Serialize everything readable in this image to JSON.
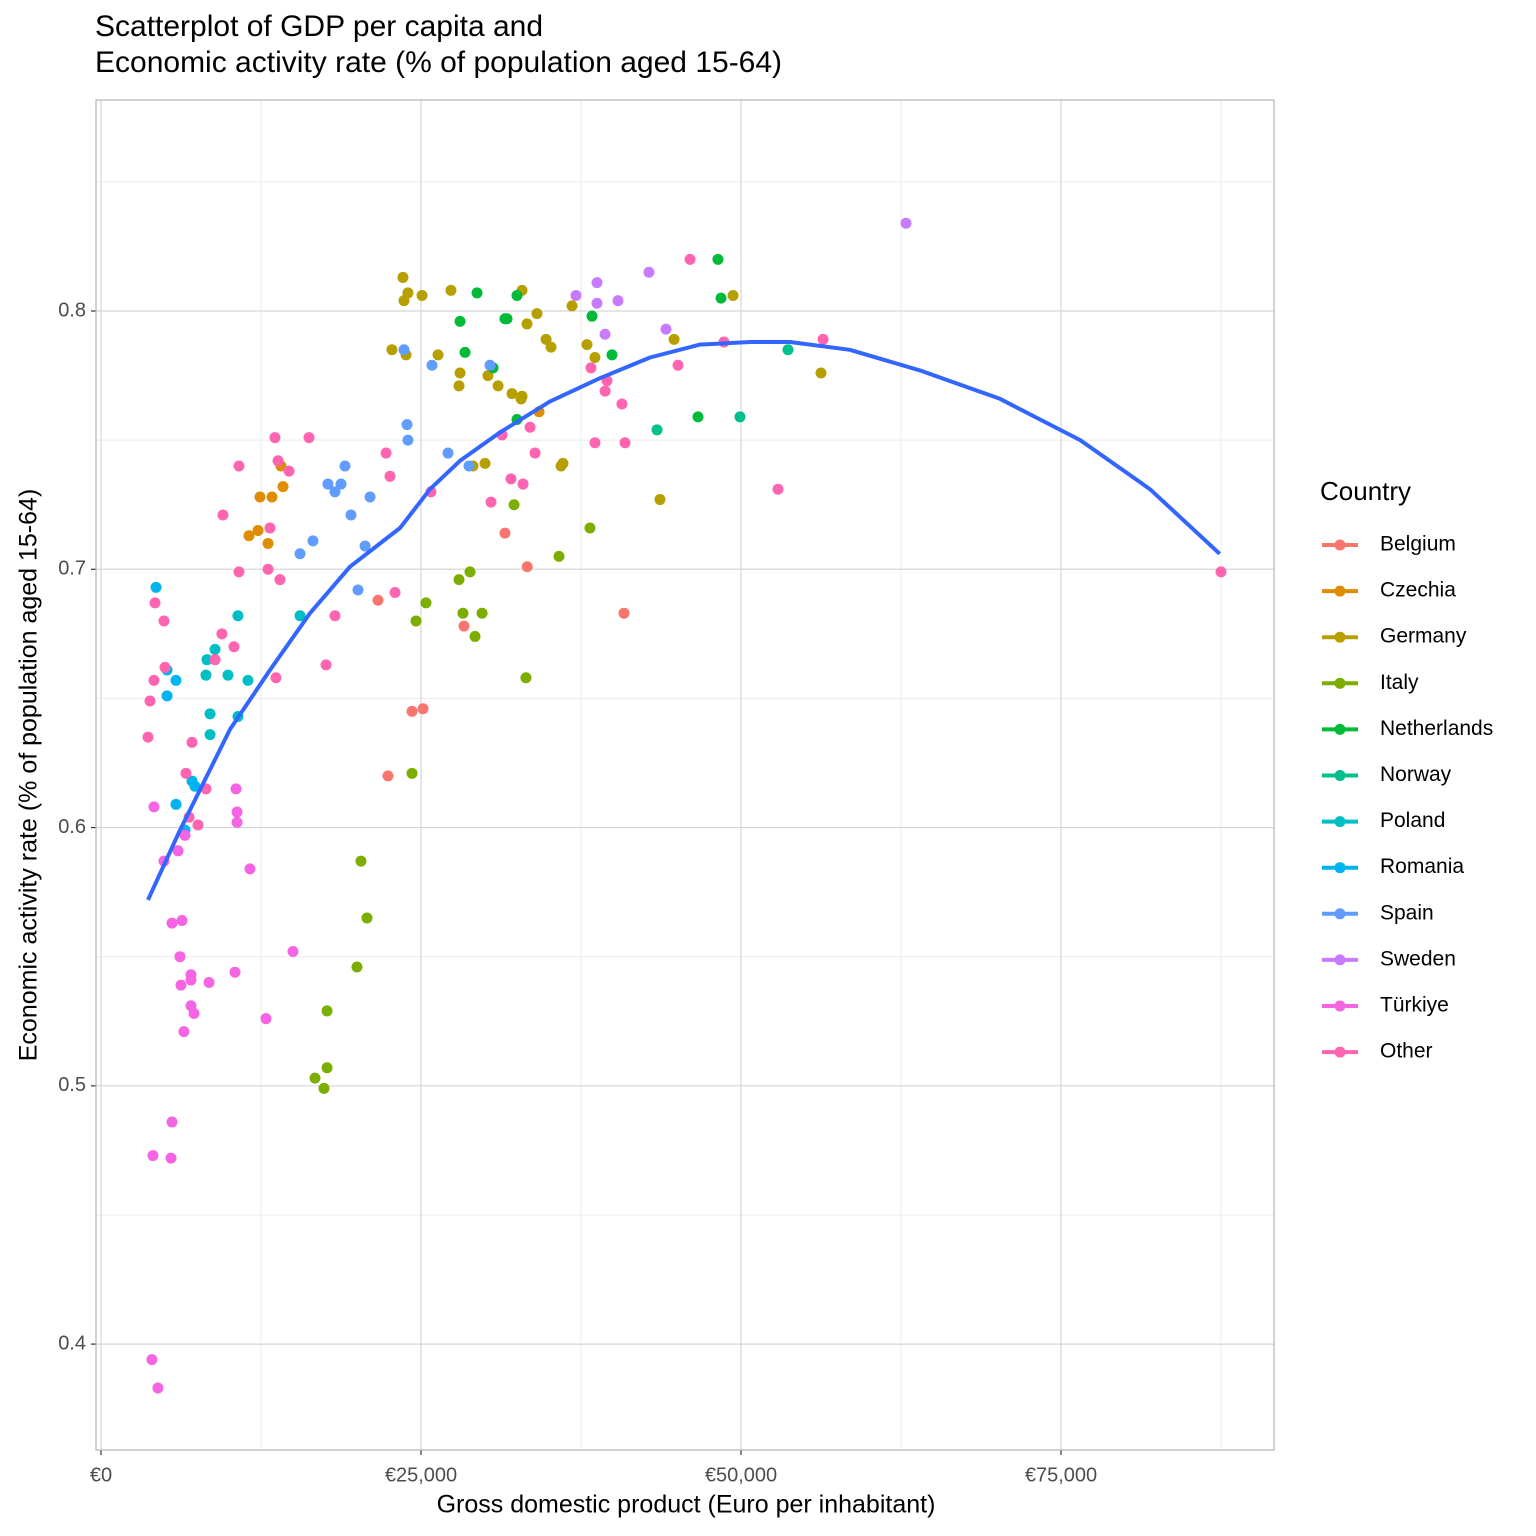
{
  "chart_data": {
    "type": "scatter",
    "title": [
      "Scatterplot of GDP per capita and",
      "Economic activity rate (% of population aged 15-64)"
    ],
    "x_label": "Gross domestic product (Euro per inhabitant)",
    "y_label": "Economic activity rate (% of population aged 15-64)",
    "legend_title": "Country",
    "legend_position": "right",
    "grid": true,
    "xlim": [
      -390,
      91640
    ],
    "ylim": [
      0.359,
      0.8817
    ],
    "xticks": [
      {
        "value": 0,
        "label": "€0"
      },
      {
        "value": 25000,
        "label": "€25,000"
      },
      {
        "value": 50000,
        "label": "€50,000"
      },
      {
        "value": 75000,
        "label": "€75,000"
      }
    ],
    "yticks": [
      0.4,
      0.5,
      0.6,
      0.7,
      0.8
    ],
    "series": [
      {
        "name": "Belgium",
        "color": "#F8766D",
        "x": [
          33300,
          28360,
          24300,
          25160,
          22420,
          21640,
          40860,
          31560
        ],
        "values": [
          0.701,
          0.678,
          0.645,
          0.646,
          0.62,
          0.688,
          0.683,
          0.714
        ]
      },
      {
        "name": "Czechia",
        "color": "#DE8C00",
        "x": [
          11560,
          12270,
          12420,
          13050,
          13360,
          14060,
          14220,
          34220
        ],
        "values": [
          0.713,
          0.715,
          0.728,
          0.71,
          0.728,
          0.74,
          0.732,
          0.761
        ]
      },
      {
        "name": "Germany",
        "color": "#B79F00",
        "x": [
          23590,
          23980,
          25080,
          23670,
          22730,
          23830,
          27340,
          26330,
          28050,
          27970,
          30230,
          31020,
          32110,
          32890,
          32820,
          33280,
          32890,
          34060,
          34770,
          35160,
          36800,
          37970,
          38590,
          44770,
          49380,
          56250,
          30000,
          29060,
          35940,
          36090,
          43670
        ],
        "values": [
          0.813,
          0.807,
          0.806,
          0.804,
          0.785,
          0.783,
          0.808,
          0.783,
          0.776,
          0.771,
          0.775,
          0.771,
          0.768,
          0.767,
          0.766,
          0.795,
          0.808,
          0.799,
          0.789,
          0.786,
          0.802,
          0.787,
          0.782,
          0.789,
          0.806,
          0.776,
          0.741,
          0.74,
          0.74,
          0.741,
          0.727
        ]
      },
      {
        "name": "Italy",
        "color": "#7CAE00",
        "x": [
          27970,
          28830,
          25390,
          24610,
          28280,
          29770,
          29220,
          33200,
          24300,
          20310,
          20780,
          20000,
          17660,
          16720,
          17660,
          17420,
          32270,
          35780,
          38200
        ],
        "values": [
          0.696,
          0.699,
          0.687,
          0.68,
          0.683,
          0.683,
          0.674,
          0.658,
          0.621,
          0.587,
          0.565,
          0.546,
          0.529,
          0.503,
          0.507,
          0.499,
          0.725,
          0.705,
          0.716
        ]
      },
      {
        "name": "Netherlands",
        "color": "#00BA38",
        "x": [
          28440,
          28050,
          29380,
          31560,
          32500,
          30630,
          31720,
          38360,
          39920,
          46640,
          48200,
          48440,
          32500
        ],
        "values": [
          0.784,
          0.796,
          0.807,
          0.797,
          0.806,
          0.778,
          0.797,
          0.798,
          0.783,
          0.759,
          0.82,
          0.805,
          0.758
        ]
      },
      {
        "name": "Norway",
        "color": "#00C08B",
        "x": [
          43440,
          49920,
          53670
        ],
        "values": [
          0.754,
          0.759,
          0.785
        ]
      },
      {
        "name": "Poland",
        "color": "#00BFC4",
        "x": [
          10700,
          8910,
          8280,
          8200,
          8520,
          8520,
          9920,
          10700,
          11480,
          15550
        ],
        "values": [
          0.682,
          0.669,
          0.665,
          0.659,
          0.644,
          0.636,
          0.659,
          0.643,
          0.657,
          0.682
        ]
      },
      {
        "name": "Romania",
        "color": "#00B4F0",
        "x": [
          4300,
          5160,
          5160,
          5860,
          5860,
          7110,
          7340,
          6560
        ],
        "values": [
          0.693,
          0.661,
          0.651,
          0.657,
          0.609,
          0.618,
          0.616,
          0.599
        ]
      },
      {
        "name": "Spain",
        "color": "#619CFF",
        "x": [
          23670,
          25860,
          23910,
          23980,
          27110,
          28750,
          30390,
          19060,
          17730,
          18750,
          18280,
          19530,
          21020,
          20630,
          16560,
          15550,
          20080
        ],
        "values": [
          0.785,
          0.779,
          0.756,
          0.75,
          0.745,
          0.74,
          0.779,
          0.74,
          0.733,
          0.733,
          0.73,
          0.721,
          0.728,
          0.709,
          0.711,
          0.706,
          0.692
        ]
      },
      {
        "name": "Sweden",
        "color": "#C77CFF",
        "x": [
          37110,
          38750,
          38750,
          40390,
          42810,
          39380,
          44140,
          62890
        ],
        "values": [
          0.806,
          0.811,
          0.803,
          0.804,
          0.815,
          0.791,
          0.793,
          0.834
        ]
      },
      {
        "name": "Türkiye",
        "color": "#F564E3",
        "x": [
          4140,
          6560,
          6020,
          4920,
          10630,
          10550,
          10630,
          11640,
          15000,
          10470,
          12890,
          6330,
          5550,
          6170,
          7030,
          7030,
          6250,
          8440,
          7030,
          7270,
          6480,
          5550,
          4060,
          5470,
          3980,
          4450
        ],
        "values": [
          0.608,
          0.597,
          0.591,
          0.587,
          0.602,
          0.615,
          0.606,
          0.584,
          0.552,
          0.544,
          0.526,
          0.564,
          0.563,
          0.55,
          0.543,
          0.541,
          0.539,
          0.54,
          0.531,
          0.528,
          0.521,
          0.486,
          0.473,
          0.472,
          0.394,
          0.383
        ]
      },
      {
        "name": "Other",
        "color": "#FF64B0",
        "x": [
          3830,
          3670,
          4140,
          4220,
          4920,
          5000,
          7110,
          6640,
          6880,
          7580,
          8200,
          8910,
          9450,
          10390,
          9530,
          10780,
          10780,
          13050,
          13200,
          13590,
          13830,
          13980,
          14690,
          13670,
          16250,
          18280,
          17580,
          22270,
          22580,
          22970,
          25780,
          30470,
          31330,
          32030,
          33520,
          33910,
          32970,
          38280,
          38590,
          39380,
          39530,
          40700,
          40940,
          45080,
          46020,
          48670,
          56410,
          52890,
          87500
        ],
        "values": [
          0.649,
          0.635,
          0.657,
          0.687,
          0.68,
          0.662,
          0.633,
          0.621,
          0.604,
          0.601,
          0.615,
          0.665,
          0.675,
          0.67,
          0.721,
          0.74,
          0.699,
          0.7,
          0.716,
          0.751,
          0.742,
          0.696,
          0.738,
          0.658,
          0.751,
          0.682,
          0.663,
          0.745,
          0.736,
          0.691,
          0.73,
          0.726,
          0.752,
          0.735,
          0.755,
          0.745,
          0.733,
          0.778,
          0.749,
          0.769,
          0.773,
          0.764,
          0.749,
          0.779,
          0.82,
          0.788,
          0.789,
          0.731,
          0.699
        ]
      }
    ],
    "smooth": {
      "color": "#3366FF",
      "x": [
        3670,
        6170,
        10080,
        13200,
        16330,
        19450,
        23360,
        25700,
        28050,
        31170,
        35080,
        38980,
        42890,
        46800,
        50700,
        53830,
        58500,
        63980,
        70230,
        76500,
        81950,
        87400
      ],
      "y": [
        0.572,
        0.599,
        0.638,
        0.661,
        0.683,
        0.701,
        0.716,
        0.731,
        0.742,
        0.753,
        0.765,
        0.774,
        0.782,
        0.787,
        0.788,
        0.788,
        0.785,
        0.777,
        0.766,
        0.75,
        0.731,
        0.706
      ]
    }
  }
}
